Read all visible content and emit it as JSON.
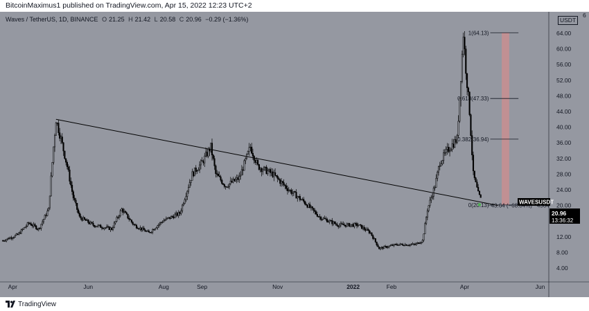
{
  "header": {
    "published_text": "BitcoinMaximus1 published on TradingView.com, Apr 15, 2022 12:23 UTC+2"
  },
  "symbol_line": {
    "title": "Waves / TetherUS, 1D, BINANCE",
    "o_label": "O",
    "o_value": "21.25",
    "h_label": "H",
    "h_value": "21.42",
    "l_label": "L",
    "l_value": "20.58",
    "c_label": "C",
    "c_value": "20.96",
    "change": "−0.29 (−1.36%)"
  },
  "currency": "USDT",
  "footer": {
    "brand": "TradingView"
  },
  "colors": {
    "background": "#9598a1",
    "candle": "#000000",
    "trendline": "#000000",
    "target_zone": "#c98e91",
    "last_price_label_bg": "#000000",
    "marker": "#4caf50"
  },
  "chart_data": {
    "type": "candlestick",
    "symbol": "WAVESUSDT",
    "last_price": "20.96",
    "countdown": "13:36:32",
    "ylim": [
      0,
      68
    ],
    "y_ticks": [
      4,
      8,
      12,
      16,
      20,
      24,
      28,
      32,
      36,
      40,
      44,
      48,
      52,
      56,
      60,
      64
    ],
    "y_tick_labels": [
      "4.00",
      "8.00",
      "12.00",
      "16.00",
      "20.00",
      "24.00",
      "28.00",
      "32.00",
      "36.00",
      "40.00",
      "44.00",
      "48.00",
      "52.00",
      "56.00",
      "60.00",
      "64.00"
    ],
    "y_top_label": "6",
    "x_ticks": [
      {
        "date": "2021-04-01",
        "label": "Apr"
      },
      {
        "date": "2021-06-01",
        "label": "Jun"
      },
      {
        "date": "2021-08-01",
        "label": "Aug"
      },
      {
        "date": "2021-09-01",
        "label": "Sep"
      },
      {
        "date": "2021-11-01",
        "label": "Nov"
      },
      {
        "date": "2022-01-01",
        "label": "2022"
      },
      {
        "date": "2022-02-01",
        "label": "Feb"
      },
      {
        "date": "2022-04-01",
        "label": "Apr"
      },
      {
        "date": "2022-06-01",
        "label": "Jun"
      }
    ],
    "x_range": [
      "2021-03-24",
      "2022-06-08"
    ],
    "price_path": [
      {
        "date": "2021-03-24",
        "price": 11.0
      },
      {
        "date": "2021-04-05",
        "price": 12.5
      },
      {
        "date": "2021-04-14",
        "price": 15.5
      },
      {
        "date": "2021-04-22",
        "price": 14.0
      },
      {
        "date": "2021-04-30",
        "price": 19.0
      },
      {
        "date": "2021-05-04",
        "price": 35.0
      },
      {
        "date": "2021-05-06",
        "price": 42.0
      },
      {
        "date": "2021-05-10",
        "price": 37.0
      },
      {
        "date": "2021-05-15",
        "price": 30.0
      },
      {
        "date": "2021-05-20",
        "price": 22.0
      },
      {
        "date": "2021-05-25",
        "price": 17.0
      },
      {
        "date": "2021-06-05",
        "price": 15.0
      },
      {
        "date": "2021-06-20",
        "price": 14.0
      },
      {
        "date": "2021-06-28",
        "price": 19.0
      },
      {
        "date": "2021-07-08",
        "price": 15.0
      },
      {
        "date": "2021-07-20",
        "price": 13.0
      },
      {
        "date": "2021-07-31",
        "price": 16.0
      },
      {
        "date": "2021-08-14",
        "price": 18.0
      },
      {
        "date": "2021-08-24",
        "price": 28.0
      },
      {
        "date": "2021-09-01",
        "price": 31.0
      },
      {
        "date": "2021-09-08",
        "price": 35.0
      },
      {
        "date": "2021-09-12",
        "price": 28.0
      },
      {
        "date": "2021-09-20",
        "price": 25.0
      },
      {
        "date": "2021-10-01",
        "price": 27.0
      },
      {
        "date": "2021-10-10",
        "price": 35.0
      },
      {
        "date": "2021-10-16",
        "price": 30.0
      },
      {
        "date": "2021-10-28",
        "price": 28.0
      },
      {
        "date": "2021-11-10",
        "price": 24.0
      },
      {
        "date": "2021-11-22",
        "price": 21.0
      },
      {
        "date": "2021-12-05",
        "price": 17.0
      },
      {
        "date": "2021-12-20",
        "price": 15.0
      },
      {
        "date": "2022-01-05",
        "price": 15.0
      },
      {
        "date": "2022-01-15",
        "price": 13.0
      },
      {
        "date": "2022-01-22",
        "price": 9.0
      },
      {
        "date": "2022-02-05",
        "price": 10.0
      },
      {
        "date": "2022-02-20",
        "price": 10.0
      },
      {
        "date": "2022-02-26",
        "price": 11.0
      },
      {
        "date": "2022-03-02",
        "price": 19.0
      },
      {
        "date": "2022-03-08",
        "price": 25.0
      },
      {
        "date": "2022-03-12",
        "price": 31.0
      },
      {
        "date": "2022-03-18",
        "price": 34.0
      },
      {
        "date": "2022-03-26",
        "price": 37.0
      },
      {
        "date": "2022-03-31",
        "price": 64.0
      },
      {
        "date": "2022-04-02",
        "price": 55.0
      },
      {
        "date": "2022-04-05",
        "price": 44.0
      },
      {
        "date": "2022-04-08",
        "price": 28.0
      },
      {
        "date": "2022-04-12",
        "price": 23.0
      },
      {
        "date": "2022-04-15",
        "price": 20.96
      }
    ],
    "trendline": {
      "start": {
        "date": "2021-05-06",
        "price": 42.0
      },
      "end": {
        "date": "2022-04-28",
        "price": 20.0
      }
    },
    "fib_levels": [
      {
        "ratio_label": "1(64.13)",
        "price": 64.13
      },
      {
        "ratio_label": "0.618(47.33)",
        "price": 47.33
      },
      {
        "ratio_label": "0.382(36.94)",
        "price": 36.94
      },
      {
        "ratio_label": "0(20.13)",
        "price": 20.13
      }
    ],
    "fib_x_range": [
      "2022-04-15",
      "2022-05-10"
    ],
    "target_zone": {
      "from_date": "2022-05-01",
      "to_date": "2022-05-07",
      "low": 20.13,
      "high": 64.13
    },
    "measure_label": "−43.64 (−68.04%) −4364",
    "measure_marker": {
      "date": "2022-04-13",
      "price": 19.5
    }
  }
}
